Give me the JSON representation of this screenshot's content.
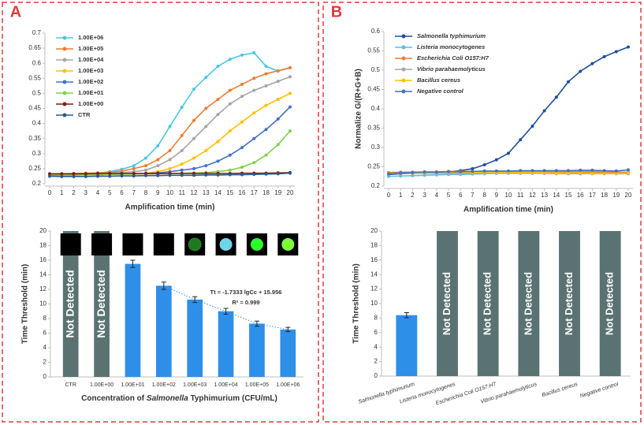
{
  "chart_data": [
    {
      "type": "line",
      "panel": "A",
      "xlabel": "Amplification time (min)",
      "xlim": [
        0,
        20
      ],
      "xticks": [
        0,
        1,
        2,
        3,
        4,
        5,
        6,
        7,
        8,
        9,
        10,
        11,
        12,
        13,
        14,
        15,
        16,
        17,
        18,
        19,
        20
      ],
      "x": [
        0,
        1,
        2,
        3,
        4,
        5,
        6,
        7,
        8,
        9,
        10,
        11,
        12,
        13,
        14,
        15,
        16,
        17,
        18,
        19,
        20
      ],
      "ylim": [
        0.2,
        0.7
      ],
      "yticks": [
        0.2,
        0.25,
        0.3,
        0.35,
        0.4,
        0.45,
        0.5,
        0.55,
        0.6,
        0.65,
        0.7
      ],
      "legend": "upper left",
      "series": [
        {
          "name": "1.00E+06",
          "color": "#4bc6e8",
          "values": [
            0.228,
            0.23,
            0.23,
            0.232,
            0.235,
            0.24,
            0.248,
            0.26,
            0.285,
            0.326,
            0.39,
            0.454,
            0.514,
            0.553,
            0.59,
            0.613,
            0.627,
            0.635,
            0.59,
            0.574,
            0.585
          ]
        },
        {
          "name": "1.00E+05",
          "color": "#ed7d31",
          "values": [
            0.232,
            0.233,
            0.234,
            0.235,
            0.236,
            0.238,
            0.242,
            0.25,
            0.26,
            0.28,
            0.31,
            0.36,
            0.41,
            0.45,
            0.48,
            0.51,
            0.53,
            0.55,
            0.565,
            0.575,
            0.585
          ]
        },
        {
          "name": "1.00E+04",
          "color": "#a5a5a5",
          "values": [
            0.23,
            0.231,
            0.232,
            0.233,
            0.234,
            0.235,
            0.237,
            0.24,
            0.245,
            0.26,
            0.28,
            0.31,
            0.35,
            0.39,
            0.43,
            0.465,
            0.49,
            0.51,
            0.525,
            0.54,
            0.555
          ]
        },
        {
          "name": "1.00E+03",
          "color": "#ffc000",
          "values": [
            0.23,
            0.231,
            0.231,
            0.232,
            0.232,
            0.233,
            0.233,
            0.234,
            0.235,
            0.24,
            0.25,
            0.265,
            0.285,
            0.31,
            0.34,
            0.375,
            0.405,
            0.435,
            0.46,
            0.48,
            0.5
          ]
        },
        {
          "name": "1.00E+02",
          "color": "#4472c4",
          "values": [
            0.228,
            0.229,
            0.229,
            0.23,
            0.23,
            0.231,
            0.232,
            0.233,
            0.234,
            0.236,
            0.24,
            0.245,
            0.25,
            0.26,
            0.275,
            0.295,
            0.32,
            0.35,
            0.38,
            0.415,
            0.455
          ]
        },
        {
          "name": "1.00E+01",
          "color": "#7fd14a",
          "values": [
            0.229,
            0.23,
            0.23,
            0.23,
            0.231,
            0.231,
            0.232,
            0.232,
            0.233,
            0.233,
            0.234,
            0.235,
            0.236,
            0.237,
            0.24,
            0.245,
            0.255,
            0.27,
            0.295,
            0.33,
            0.375
          ]
        },
        {
          "name": "1.00E+00",
          "color": "#7b1e12",
          "values": [
            0.233,
            0.233,
            0.233,
            0.233,
            0.234,
            0.234,
            0.234,
            0.234,
            0.234,
            0.234,
            0.234,
            0.234,
            0.234,
            0.234,
            0.234,
            0.234,
            0.235,
            0.235,
            0.235,
            0.236,
            0.237
          ]
        },
        {
          "name": "CTR",
          "color": "#255e91",
          "values": [
            0.225,
            0.224,
            0.224,
            0.224,
            0.225,
            0.225,
            0.226,
            0.226,
            0.227,
            0.227,
            0.228,
            0.228,
            0.228,
            0.229,
            0.229,
            0.23,
            0.23,
            0.231,
            0.232,
            0.233,
            0.235
          ]
        }
      ]
    },
    {
      "type": "bar",
      "ylabel": "Time Threshold (min)",
      "xlabel": [
        "Concentration of ",
        "Salmonella",
        " Typhimurium (CFU/mL)"
      ],
      "categories": [
        "CTR",
        "1.00E+00",
        "1.00E+01",
        "1.00E+02",
        "1.00E+03",
        "1.00E+04",
        "1.00E+05",
        "1.00E+06"
      ],
      "values": [
        20,
        20,
        15.5,
        12.5,
        10.6,
        9,
        7.3,
        6.5
      ],
      "errors": [
        null,
        null,
        0.5,
        0.5,
        0.4,
        0.4,
        0.35,
        0.3
      ],
      "value_labels": [
        "Not Detected",
        "Not Detected",
        null,
        null,
        null,
        null,
        null,
        null
      ],
      "colors": [
        "#5a7372",
        "#5a7372",
        "#2e8fe8",
        "#2e8fe8",
        "#2e8fe8",
        "#2e8fe8",
        "#2e8fe8",
        "#2e8fe8"
      ],
      "ylim": [
        0,
        20
      ],
      "yticks": [
        0,
        2,
        4,
        6,
        8,
        10,
        12,
        14,
        16,
        18,
        20
      ],
      "annotations": [
        "Tt = -1.7333 lgCc + 15.956",
        "R² = 0.999"
      ]
    },
    {
      "type": "line",
      "panel": "B",
      "xlabel": "Amplification time (min)",
      "ylabel": "Normalize G/(R+G+B)",
      "xlim": [
        0,
        20
      ],
      "xticks": [
        0,
        1,
        2,
        3,
        4,
        5,
        6,
        7,
        8,
        9,
        10,
        11,
        12,
        13,
        14,
        15,
        16,
        17,
        18,
        19,
        20
      ],
      "x": [
        0,
        1,
        2,
        3,
        4,
        5,
        6,
        7,
        8,
        9,
        10,
        11,
        12,
        13,
        14,
        15,
        16,
        17,
        18,
        19,
        20
      ],
      "ylim": [
        0.2,
        0.6
      ],
      "yticks": [
        0.2,
        0.25,
        0.3,
        0.35,
        0.4,
        0.45,
        0.5,
        0.55,
        0.6
      ],
      "legend": "upper left",
      "series": [
        {
          "name": "Salmonella typhimurium",
          "color": "#1f4e9c",
          "values": [
            0.23,
            0.232,
            0.233,
            0.234,
            0.235,
            0.237,
            0.24,
            0.245,
            0.255,
            0.268,
            0.285,
            0.32,
            0.355,
            0.395,
            0.43,
            0.47,
            0.497,
            0.517,
            0.535,
            0.548,
            0.56
          ]
        },
        {
          "name": "Listeria monocytogenes",
          "color": "#5bc0de",
          "values": [
            0.225,
            0.226,
            0.227,
            0.228,
            0.229,
            0.23,
            0.23,
            0.231,
            0.232,
            0.233,
            0.234,
            0.235,
            0.236,
            0.237,
            0.237,
            0.238,
            0.238,
            0.238,
            0.237,
            0.236,
            0.236
          ]
        },
        {
          "name": "Escherichia Coli O157:H7",
          "color": "#ed7d31",
          "values": [
            0.235,
            0.236,
            0.236,
            0.237,
            0.237,
            0.238,
            0.238,
            0.238,
            0.238,
            0.238,
            0.237,
            0.237,
            0.237,
            0.237,
            0.237,
            0.236,
            0.236,
            0.236,
            0.236,
            0.235,
            0.235
          ]
        },
        {
          "name": "Vibrio parahaemolyticus",
          "color": "#a5a5a5",
          "values": [
            0.232,
            0.233,
            0.233,
            0.233,
            0.233,
            0.233,
            0.233,
            0.233,
            0.233,
            0.233,
            0.233,
            0.233,
            0.233,
            0.233,
            0.232,
            0.232,
            0.232,
            0.232,
            0.232,
            0.232,
            0.232
          ]
        },
        {
          "name": "Bacillus cereus",
          "color": "#ffc000",
          "values": [
            0.233,
            0.234,
            0.234,
            0.234,
            0.235,
            0.235,
            0.235,
            0.235,
            0.235,
            0.235,
            0.235,
            0.235,
            0.235,
            0.235,
            0.233,
            0.234,
            0.234,
            0.233,
            0.233,
            0.233,
            0.234
          ]
        },
        {
          "name": "Negative control",
          "color": "#4472c4",
          "values": [
            0.232,
            0.234,
            0.235,
            0.236,
            0.236,
            0.237,
            0.237,
            0.238,
            0.239,
            0.239,
            0.239,
            0.24,
            0.24,
            0.24,
            0.24,
            0.24,
            0.241,
            0.241,
            0.24,
            0.239,
            0.242
          ]
        }
      ]
    },
    {
      "type": "bar",
      "ylabel": "Time Threshold (min)",
      "categories": [
        "Salmonella typhimurium",
        "Listeria monocytogenes",
        "Escherichia Coli O157:H7",
        "Vibrio parahaemolyticus",
        "Bacillus cereus",
        "Negative control"
      ],
      "values": [
        8.4,
        20,
        20,
        20,
        20,
        20
      ],
      "errors": [
        0.35,
        null,
        null,
        null,
        null,
        null
      ],
      "value_labels": [
        null,
        "Not Detected",
        "Not Detected",
        "Not Detected",
        "Not Detected",
        "Not Detected"
      ],
      "colors": [
        "#2e8fe8",
        "#5a7372",
        "#5a7372",
        "#5a7372",
        "#5a7372",
        "#5a7372"
      ],
      "ylim": [
        0,
        20
      ],
      "yticks": [
        0,
        2,
        4,
        6,
        8,
        10,
        12,
        14,
        16,
        18,
        20
      ]
    }
  ]
}
